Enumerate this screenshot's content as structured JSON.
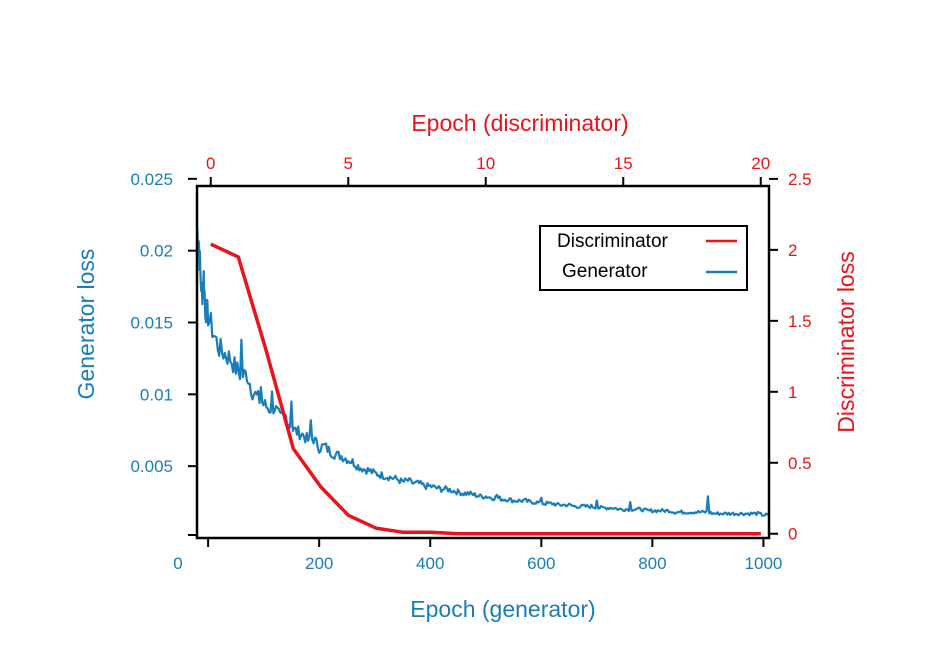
{
  "chart_data": {
    "type": "line",
    "colors": {
      "generator": "#1a7db8",
      "discriminator": "#e8141b"
    },
    "axes": {
      "x_bottom": {
        "label": "Epoch (generator)",
        "range": [
          -20,
          1010
        ],
        "ticks": [
          0,
          200,
          400,
          600,
          800,
          1000
        ]
      },
      "x_top": {
        "label": "Epoch (discriminator)",
        "range": [
          -0.5,
          20.3
        ],
        "ticks": [
          0,
          5,
          10,
          15,
          20
        ]
      },
      "y_left": {
        "label": "Generator loss",
        "range": [
          0,
          0.0245
        ],
        "ticks": [
          0.005,
          0.01,
          0.015,
          0.02,
          0.025
        ],
        "tick_labels": [
          "0.005",
          "0.01",
          "0.015",
          "0.02",
          "0.025"
        ]
      },
      "y_right": {
        "label": "Discriminator loss",
        "range": [
          -0.03,
          2.45
        ],
        "ticks": [
          0,
          0.5,
          1,
          1.5,
          2,
          2.5
        ],
        "tick_labels": [
          "0",
          "0.5",
          "1",
          "1.5",
          "2",
          "2.5"
        ]
      }
    },
    "grid": false,
    "legend": {
      "position": "top-right",
      "entries": [
        {
          "label": "Discriminator",
          "series": "discriminator"
        },
        {
          "label": "Generator",
          "series": "generator"
        }
      ]
    },
    "series": [
      {
        "name": "Discriminator",
        "axis": "top-right",
        "x": [
          0,
          1,
          2,
          3,
          4,
          5,
          6,
          7,
          8,
          9,
          10,
          11,
          12,
          13,
          14,
          15,
          16,
          17,
          18,
          19,
          20
        ],
        "y": [
          2.04,
          1.95,
          1.3,
          0.6,
          0.33,
          0.13,
          0.04,
          0.01,
          0.01,
          0.0,
          0.0,
          0.0,
          0.0,
          0.0,
          0.0,
          0.0,
          0.0,
          0.0,
          0.0,
          0.0,
          0.0
        ]
      },
      {
        "name": "Generator",
        "axis": "bottom-left",
        "x": [
          -20,
          -17,
          -14,
          -11,
          -8,
          -5,
          0,
          10,
          20,
          30,
          40,
          50,
          60,
          70,
          80,
          90,
          100,
          110,
          120,
          130,
          140,
          150,
          160,
          170,
          180,
          190,
          200,
          210,
          220,
          230,
          240,
          250,
          260,
          270,
          280,
          290,
          300,
          310,
          320,
          330,
          340,
          350,
          360,
          370,
          380,
          390,
          400,
          410,
          420,
          430,
          440,
          450,
          460,
          470,
          480,
          490,
          500,
          510,
          520,
          530,
          540,
          550,
          560,
          570,
          580,
          590,
          600,
          610,
          620,
          630,
          640,
          650,
          660,
          670,
          680,
          690,
          700,
          710,
          720,
          730,
          740,
          750,
          760,
          770,
          780,
          790,
          800,
          810,
          820,
          830,
          840,
          850,
          860,
          870,
          880,
          890,
          900,
          910,
          920,
          930,
          940,
          950,
          960,
          970,
          980,
          990,
          1000,
          1010
        ],
        "y": [
          0.0215,
          0.0208,
          0.0185,
          0.0168,
          0.0182,
          0.016,
          0.0155,
          0.0142,
          0.0132,
          0.0128,
          0.0125,
          0.0118,
          0.0113,
          0.0114,
          0.0102,
          0.0097,
          0.0093,
          0.009,
          0.0091,
          0.0083,
          0.0085,
          0.0076,
          0.0074,
          0.0072,
          0.0068,
          0.0069,
          0.0063,
          0.0064,
          0.006,
          0.0058,
          0.0057,
          0.0055,
          0.0053,
          0.005,
          0.0048,
          0.0047,
          0.0045,
          0.0044,
          0.0043,
          0.0042,
          0.0041,
          0.0039,
          0.004,
          0.0038,
          0.0038,
          0.0036,
          0.0036,
          0.0035,
          0.0034,
          0.0034,
          0.0033,
          0.0032,
          0.0031,
          0.0031,
          0.003,
          0.0029,
          0.0029,
          0.0028,
          0.0028,
          0.0027,
          0.0027,
          0.0026,
          0.0026,
          0.0026,
          0.0025,
          0.0025,
          0.0024,
          0.0024,
          0.0024,
          0.0023,
          0.0023,
          0.0023,
          0.0022,
          0.0022,
          0.0022,
          0.0022,
          0.0021,
          0.0021,
          0.0021,
          0.0021,
          0.002,
          0.002,
          0.002,
          0.002,
          0.002,
          0.0019,
          0.0019,
          0.0019,
          0.0019,
          0.0019,
          0.0018,
          0.0018,
          0.0018,
          0.0018,
          0.0018,
          0.0018,
          0.0018,
          0.0017,
          0.0017,
          0.0017,
          0.0017,
          0.0017,
          0.0017,
          0.0017,
          0.0017,
          0.0017,
          0.0016,
          0.0016
        ],
        "spikes": [
          [
            60,
            0.0138
          ],
          [
            95,
            0.0105
          ],
          [
            115,
            0.0102
          ],
          [
            150,
            0.0095
          ],
          [
            185,
            0.0082
          ],
          [
            520,
            0.003
          ],
          [
            600,
            0.0028
          ],
          [
            700,
            0.0026
          ],
          [
            760,
            0.0025
          ],
          [
            900,
            0.0029
          ]
        ]
      }
    ]
  }
}
